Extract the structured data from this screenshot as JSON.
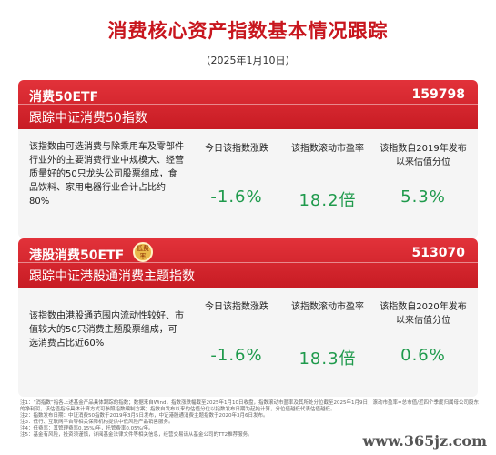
{
  "page": {
    "title": "消费核心资产指数基本情况跟踪",
    "date": "（2025年1月10日）"
  },
  "cards": [
    {
      "name": "消费50ETF",
      "code": "159798",
      "subtitle": "跟踪中证消费50指数",
      "badge": "",
      "description": "该指数由可选消费与除乘用车及零部件行业外的主要消费行业中规模大、经营质量好的50只龙头公司股票组成，食品饮料、家用电器行业合计占比约80%",
      "metrics": [
        {
          "label": "今日该指数涨跌",
          "value": "-1.6%"
        },
        {
          "label": "该指数滚动市盈率",
          "value": "18.2倍"
        },
        {
          "label": "该指数自2019年发布以来估值分位",
          "value": "5.3%"
        }
      ]
    },
    {
      "name": "港股消费50ETF",
      "code": "513070",
      "subtitle": "跟踪中证港股通消费主题指数",
      "badge": "低费率",
      "description": "该指数由港股通范围内流动性较好、市值较大的50只消费主题股票组成，可选消费占比近60%",
      "metrics": [
        {
          "label": "今日该指数涨跌",
          "value": "-1.6%"
        },
        {
          "label": "该指数滚动市盈率",
          "value": "18.3倍"
        },
        {
          "label": "该指数自2020年发布以来估值分位",
          "value": "0.6%"
        }
      ]
    }
  ],
  "notes": [
    "注1：“消指数”指各上述基金产品具体跟踪的指数；数据来自Wind，指数涨跌幅截至2025年1月10日收盘，指数滚动市盈率及其所处分位截至2025年1月9日；滚动市盈率=总市值/近四个季度归属母公司股东的净利润，该估值指标具体计算方式可参照指数编制方案；指数自发布以来的估值分位以指数发布日期为起始计算，分位值越低代表估值越低。",
    "注2：指数发布日期：中证消费50指数于2019年3月5日发布，中证港股通消费主题指数于2020年3月6日发布。",
    "注3：低行、互联网平台等相关保障机构提供中低风险产品销售服务。",
    "注4：低费率：其管理费率0.15%/年，托管费率0.05%/年。",
    "注5：基金有风险，投资须谨慎，详阅基金法律文件等相关信息，经营交易请从基金公司的TT2推荐服务。"
  ],
  "watermark": "www.365jz.com",
  "colors": {
    "accent": "#c8161e",
    "negative": "#1f9a4c",
    "card_bg": "#f5f5f5"
  }
}
